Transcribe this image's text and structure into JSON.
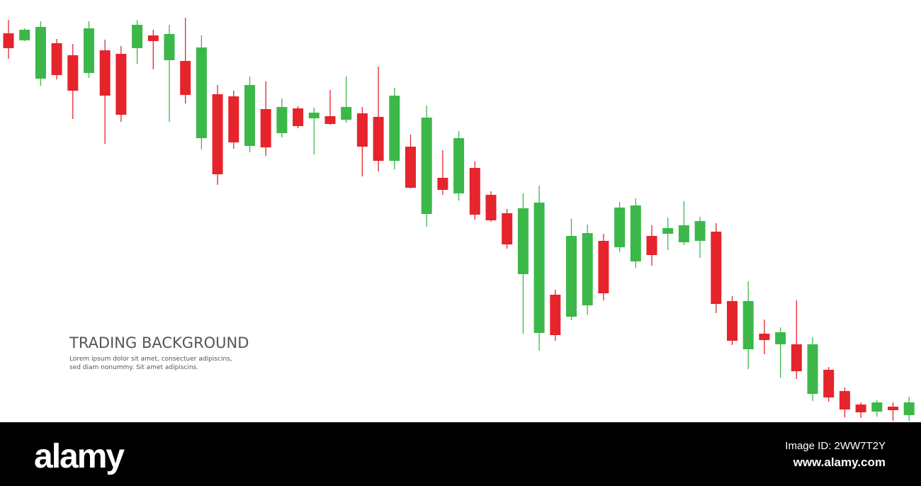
{
  "chart_data": {
    "type": "candlestick",
    "title": "TRADING BACKGROUND",
    "subtitle": [
      "Lorem ipsum dolor sit amet, consectuer adipiscins,",
      "sed diam nonummy. Sit amet adipiscins."
    ],
    "up_color": "#3cb84a",
    "down_color": "#e5242b",
    "ylim": [
      0,
      600
    ],
    "open": [
      553,
      543,
      489,
      539,
      522,
      497,
      529,
      524,
      532,
      550,
      515,
      514,
      405,
      467,
      464,
      394,
      446,
      412,
      447,
      433,
      436,
      431,
      440,
      435,
      373,
      393,
      298,
      349,
      327,
      363,
      325,
      299,
      213,
      130,
      184,
      153,
      169,
      260,
      251,
      231,
      267,
      270,
      258,
      260,
      273,
      175,
      107,
      129,
      114,
      114,
      44,
      78,
      48,
      29,
      19,
      26,
      14
    ],
    "high": [
      572,
      560,
      570,
      545,
      538,
      570,
      544,
      535,
      572,
      558,
      565,
      575,
      550,
      480,
      472,
      492,
      485,
      461,
      450,
      448,
      473,
      492,
      449,
      506,
      476,
      410,
      451,
      388,
      415,
      372,
      330,
      305,
      327,
      338,
      191,
      291,
      283,
      270,
      315,
      320,
      282,
      293,
      316,
      294,
      285,
      182,
      203,
      149,
      138,
      176,
      124,
      82,
      53,
      32,
      35,
      32,
      40
    ],
    "low": [
      517,
      542,
      479,
      488,
      432,
      490,
      397,
      428,
      510,
      502,
      428,
      454,
      389,
      339,
      390,
      385,
      380,
      406,
      419,
      382,
      424,
      427,
      351,
      358,
      361,
      334,
      280,
      325,
      317,
      290,
      287,
      249,
      129,
      105,
      119,
      148,
      156,
      176,
      244,
      222,
      225,
      247,
      254,
      236,
      158,
      113,
      79,
      100,
      67,
      65,
      34,
      33,
      11,
      10,
      12,
      6,
      6
    ],
    "close": [
      532,
      558,
      562,
      494,
      472,
      560,
      465,
      438,
      565,
      542,
      552,
      466,
      533,
      354,
      399,
      480,
      392,
      449,
      422,
      441,
      425,
      449,
      393,
      373,
      465,
      335,
      434,
      332,
      405,
      297,
      289,
      255,
      306,
      314,
      127,
      267,
      271,
      186,
      307,
      310,
      240,
      278,
      282,
      288,
      171,
      119,
      175,
      120,
      131,
      76,
      114,
      39,
      22,
      18,
      32,
      21,
      32
    ]
  },
  "watermark": {
    "brand": "alamy",
    "image_id": "Image ID: 2WW7T2Y",
    "url": "www.alamy.com"
  }
}
